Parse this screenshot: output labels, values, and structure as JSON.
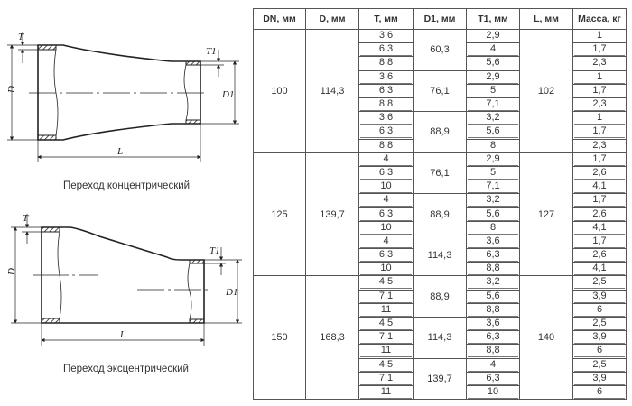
{
  "drawings": {
    "concentric": {
      "caption": "Переход концентрический",
      "labels": {
        "D": "D",
        "T": "T",
        "T1": "T1",
        "D1": "D1",
        "L": "L"
      }
    },
    "eccentric": {
      "caption": "Переход эксцентрический",
      "labels": {
        "D": "D",
        "T": "T",
        "T1": "T1",
        "D1": "D1",
        "L": "L"
      }
    }
  },
  "table": {
    "headers": [
      "DN, мм",
      "D, мм",
      "T, мм",
      "D1, мм",
      "T1, мм",
      "L, мм",
      "Масса, кг"
    ],
    "groups": [
      {
        "dn": "100",
        "d": "114,3",
        "l": "102",
        "sub": [
          {
            "d1": "60,3",
            "rows": [
              [
                "3,6",
                "2,9",
                "1"
              ],
              [
                "6,3",
                "4",
                "1,7"
              ],
              [
                "8,8",
                "5,6",
                "2,3"
              ]
            ]
          },
          {
            "d1": "76,1",
            "rows": [
              [
                "3,6",
                "2,9",
                "1"
              ],
              [
                "6,3",
                "5",
                "1,7"
              ],
              [
                "8,8",
                "7,1",
                "2,3"
              ]
            ]
          },
          {
            "d1": "88,9",
            "rows": [
              [
                "3,6",
                "3,2",
                "1"
              ],
              [
                "6,3",
                "5,6",
                "1,7"
              ],
              [
                "8,8",
                "8",
                "2,3"
              ]
            ]
          }
        ]
      },
      {
        "dn": "125",
        "d": "139,7",
        "l": "127",
        "sub": [
          {
            "d1": "76,1",
            "rows": [
              [
                "4",
                "2,9",
                "1,7"
              ],
              [
                "6,3",
                "5",
                "2,6"
              ],
              [
                "10",
                "7,1",
                "4,1"
              ]
            ]
          },
          {
            "d1": "88,9",
            "rows": [
              [
                "4",
                "3,2",
                "1,7"
              ],
              [
                "6,3",
                "5,6",
                "2,6"
              ],
              [
                "10",
                "8",
                "4,1"
              ]
            ]
          },
          {
            "d1": "114,3",
            "rows": [
              [
                "4",
                "3,6",
                "1,7"
              ],
              [
                "6,3",
                "6,3",
                "2,6"
              ],
              [
                "10",
                "8,8",
                "4,1"
              ]
            ]
          }
        ]
      },
      {
        "dn": "150",
        "d": "168,3",
        "l": "140",
        "sub": [
          {
            "d1": "88,9",
            "rows": [
              [
                "4,5",
                "3,2",
                "2,5"
              ],
              [
                "7,1",
                "5,6",
                "3,9"
              ],
              [
                "11",
                "8,8",
                "6"
              ]
            ]
          },
          {
            "d1": "114,3",
            "rows": [
              [
                "4,5",
                "3,6",
                "2,5"
              ],
              [
                "7,1",
                "6,3",
                "3,9"
              ],
              [
                "11",
                "8,8",
                "6"
              ]
            ]
          },
          {
            "d1": "139,7",
            "rows": [
              [
                "4,5",
                "4",
                "2,5"
              ],
              [
                "7,1",
                "6,3",
                "3,9"
              ],
              [
                "11",
                "10",
                "6"
              ]
            ]
          }
        ]
      }
    ]
  }
}
